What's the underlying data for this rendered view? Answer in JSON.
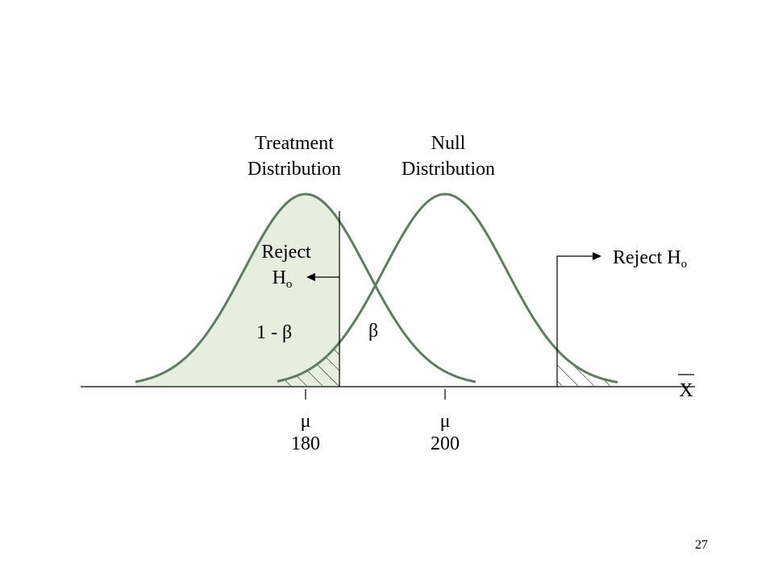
{
  "slide": {
    "page_number": "27"
  },
  "labels": {
    "treatment_line1": "Treatment",
    "treatment_line2": "Distribution",
    "null_line1": "Null",
    "null_line2": "Distribution",
    "reject_left_line1": "Reject",
    "reject_left_h": "H",
    "reject_left_sub": "o",
    "reject_right": "Reject H",
    "reject_right_sub": "o",
    "power": "1 - β",
    "beta": "β",
    "axis_symbol": "X",
    "mu_treatment": "μ",
    "mu_treatment_value": "180",
    "mu_null": "μ",
    "mu_null_value": "200"
  },
  "colors": {
    "curve": "#5f7d5f",
    "fill": "#e6eedf",
    "ink": "#000000"
  }
}
